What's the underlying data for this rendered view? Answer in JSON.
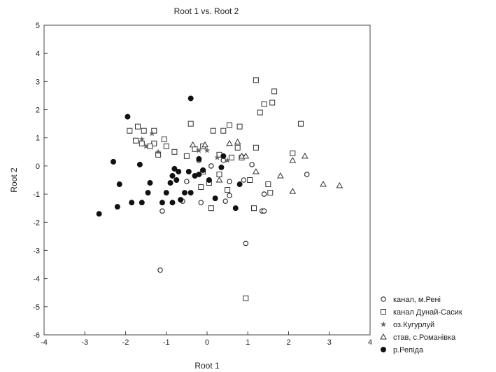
{
  "chart_data": {
    "type": "scatter",
    "title": "Root 1 vs. Root 2",
    "xlabel": "Root 1",
    "ylabel": "Root 2",
    "xlim": [
      -4,
      4
    ],
    "ylim": [
      -6,
      5
    ],
    "xticks": [
      "-4",
      "-3",
      "-2",
      "-1",
      "0",
      "1",
      "2",
      "3",
      "4"
    ],
    "yticks": [
      "-6",
      "-5",
      "-4",
      "-3",
      "-2",
      "-1",
      "0",
      "1",
      "2",
      "3",
      "4",
      "5"
    ],
    "grid": false,
    "legend_position": "bottom-right",
    "series": [
      {
        "name": "канал, м.Рені",
        "marker": "open-circle",
        "color": "#333333",
        "points": [
          [
            -1.15,
            -3.7
          ],
          [
            0.95,
            -2.75
          ],
          [
            -1.1,
            -1.6
          ],
          [
            1.35,
            -1.6
          ],
          [
            1.4,
            -1.6
          ],
          [
            -0.15,
            -1.3
          ],
          [
            0.45,
            -1.25
          ],
          [
            -0.6,
            -1.25
          ],
          [
            0.55,
            -1.05
          ],
          [
            1.4,
            -1.0
          ],
          [
            -0.5,
            -0.55
          ],
          [
            0.55,
            -0.55
          ],
          [
            0.9,
            -0.5
          ],
          [
            2.45,
            -0.3
          ],
          [
            0.1,
            0.0
          ],
          [
            1.1,
            0.05
          ],
          [
            -0.2,
            0.2
          ],
          [
            0.4,
            0.2
          ]
        ]
      },
      {
        "name": "канал Дунай-Сасик",
        "marker": "open-square",
        "color": "#333333",
        "points": [
          [
            0.95,
            -4.7
          ],
          [
            1.15,
            -1.5
          ],
          [
            0.1,
            -1.5
          ],
          [
            1.55,
            -0.95
          ],
          [
            1.5,
            -0.65
          ],
          [
            1.05,
            -0.5
          ],
          [
            -0.15,
            -0.75
          ],
          [
            0.5,
            -0.85
          ],
          [
            0.05,
            -0.6
          ],
          [
            0.3,
            -0.3
          ],
          [
            -0.1,
            -0.2
          ],
          [
            -0.3,
            0.6
          ],
          [
            -0.1,
            0.7
          ],
          [
            0.3,
            0.4
          ],
          [
            0.6,
            0.3
          ],
          [
            0.85,
            0.3
          ],
          [
            -0.8,
            0.5
          ],
          [
            -1.0,
            0.7
          ],
          [
            -1.2,
            0.4
          ],
          [
            -1.3,
            0.8
          ],
          [
            -1.4,
            0.7
          ],
          [
            -1.6,
            0.8
          ],
          [
            -1.75,
            0.9
          ],
          [
            -1.9,
            1.25
          ],
          [
            -1.7,
            1.4
          ],
          [
            -1.55,
            1.25
          ],
          [
            -1.3,
            1.25
          ],
          [
            -0.4,
            1.5
          ],
          [
            0.15,
            1.25
          ],
          [
            0.4,
            1.25
          ],
          [
            0.55,
            1.45
          ],
          [
            0.8,
            1.4
          ],
          [
            -0.5,
            0.35
          ],
          [
            0.75,
            0.65
          ],
          [
            1.2,
            0.65
          ],
          [
            2.1,
            0.45
          ],
          [
            2.3,
            1.5
          ],
          [
            1.3,
            1.9
          ],
          [
            1.4,
            2.2
          ],
          [
            1.6,
            2.25
          ],
          [
            1.65,
            2.65
          ],
          [
            1.2,
            3.05
          ],
          [
            -1.05,
            0.95
          ]
        ]
      },
      {
        "name": "оз.Кугурлуй",
        "marker": "star",
        "color": "#666666",
        "points": [
          [
            -1.35,
            1.15
          ],
          [
            -1.6,
            0.95
          ],
          [
            -1.5,
            0.7
          ],
          [
            -1.2,
            0.5
          ],
          [
            -0.2,
            0.55
          ],
          [
            0.0,
            0.55
          ],
          [
            0.25,
            0.3
          ],
          [
            0.5,
            0.2
          ]
        ]
      },
      {
        "name": "став, с.Романівка",
        "marker": "open-triangle",
        "color": "#333333",
        "points": [
          [
            -0.35,
            0.75
          ],
          [
            -0.05,
            0.75
          ],
          [
            0.55,
            0.8
          ],
          [
            0.75,
            0.85
          ],
          [
            0.85,
            0.35
          ],
          [
            0.95,
            0.35
          ],
          [
            1.2,
            -0.2
          ],
          [
            0.3,
            -0.5
          ],
          [
            1.8,
            -0.35
          ],
          [
            2.1,
            0.2
          ],
          [
            2.4,
            0.35
          ],
          [
            2.1,
            -0.9
          ],
          [
            2.85,
            -0.65
          ],
          [
            3.25,
            -0.7
          ]
        ]
      },
      {
        "name": "р.Репіда",
        "marker": "filled-circle",
        "color": "#111111",
        "points": [
          [
            -2.65,
            -1.7
          ],
          [
            -2.2,
            -1.45
          ],
          [
            -1.85,
            -1.3
          ],
          [
            -2.15,
            -0.65
          ],
          [
            -2.3,
            0.15
          ],
          [
            -1.95,
            1.75
          ],
          [
            -1.65,
            0.05
          ],
          [
            -1.4,
            -0.6
          ],
          [
            -1.45,
            -0.95
          ],
          [
            -1.0,
            -0.95
          ],
          [
            -1.1,
            -1.3
          ],
          [
            -0.85,
            -1.3
          ],
          [
            -0.65,
            -1.2
          ],
          [
            -0.55,
            -0.95
          ],
          [
            -0.4,
            -0.95
          ],
          [
            -0.9,
            -0.6
          ],
          [
            -0.75,
            -0.5
          ],
          [
            -0.85,
            -0.35
          ],
          [
            -0.8,
            -0.1
          ],
          [
            -0.7,
            -0.2
          ],
          [
            -0.45,
            -0.2
          ],
          [
            -0.3,
            -0.35
          ],
          [
            -0.2,
            -0.3
          ],
          [
            -0.1,
            -0.15
          ],
          [
            -0.2,
            0.25
          ],
          [
            0.05,
            -0.5
          ],
          [
            0.2,
            -1.15
          ],
          [
            0.7,
            -1.5
          ],
          [
            0.8,
            -0.65
          ],
          [
            0.35,
            -0.05
          ],
          [
            0.4,
            0.35
          ],
          [
            -0.4,
            2.4
          ],
          [
            -1.6,
            -1.3
          ]
        ]
      }
    ]
  }
}
